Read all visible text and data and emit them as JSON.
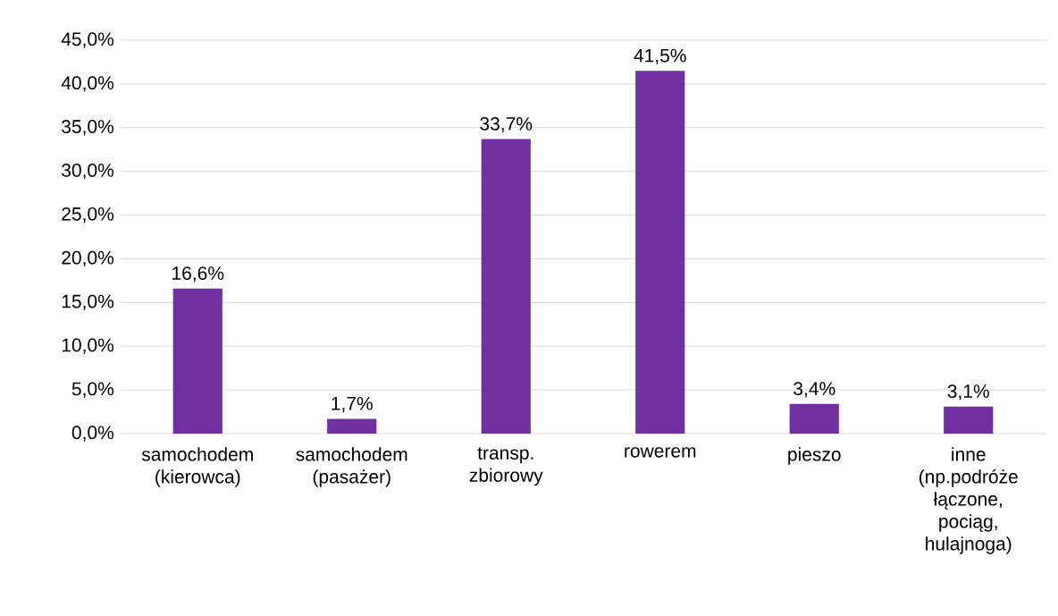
{
  "chart_data": {
    "type": "bar",
    "categories": [
      "samochodem (kierowca)",
      "samochodem (pasażer)",
      "transp. zbiorowy",
      "rowerem",
      "pieszo",
      "inne (np.podróże łączone, pociąg, hulajnoga)"
    ],
    "values": [
      16.6,
      1.7,
      33.7,
      41.5,
      3.4,
      3.1
    ],
    "value_labels": [
      "16,6%",
      "1,7%",
      "33,7%",
      "41,5%",
      "3,4%",
      "3,1%"
    ],
    "color": "#7030a0",
    "ylim": [
      0,
      45
    ],
    "yticks": [
      {
        "value": 0,
        "label": "0,0%"
      },
      {
        "value": 5,
        "label": "5,0%"
      },
      {
        "value": 10,
        "label": "10,0%"
      },
      {
        "value": 15,
        "label": "15,0%"
      },
      {
        "value": 20,
        "label": "20,0%"
      },
      {
        "value": 25,
        "label": "25,0%"
      },
      {
        "value": 30,
        "label": "30,0%"
      },
      {
        "value": 35,
        "label": "35,0%"
      },
      {
        "value": 40,
        "label": "40,0%"
      },
      {
        "value": 45,
        "label": "45,0%"
      }
    ],
    "grid": "y"
  }
}
